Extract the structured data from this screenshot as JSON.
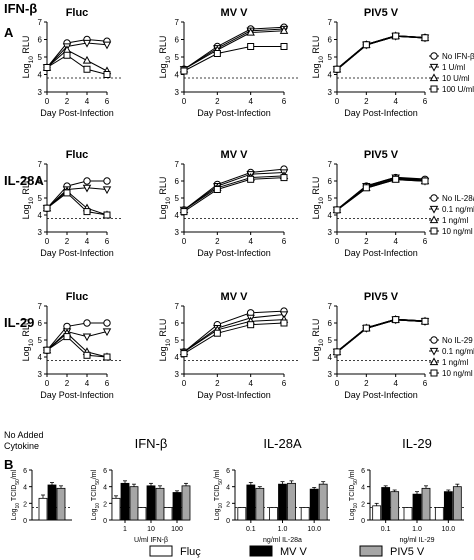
{
  "figure": {
    "panel_labels": [
      "A",
      "B"
    ],
    "row_titles": [
      "IFN-β",
      "IL-28A",
      "IL-29"
    ],
    "panel_titles": [
      "Fluc",
      "MV V",
      "PIV5 V"
    ],
    "line_xlabel": "Day Post-Infection",
    "line_ylabel_main": "Log",
    "line_ylabel_sub": "10",
    "line_ylabel_tail": " RLU",
    "bar_titles": [
      "No Added\nCytokine",
      "IFN-β",
      "IL-28A",
      "IL-29"
    ],
    "bar_ylabel_main": "Log",
    "bar_ylabel_sub1": "10",
    "bar_ylabel_mid": " TCID",
    "bar_ylabel_sub2": "50",
    "bar_ylabel_tail": "/ml",
    "bar_xlabels": [
      "U/ml IFN-β",
      "ng/ml IL-28a",
      "ng/ml IL-29"
    ],
    "bar_legend": [
      "Fluç",
      "MV V",
      "PIV5 V"
    ],
    "colors": {
      "fluc": "#ffffff",
      "mv": "#000000",
      "piv5": "#a6a6a6",
      "axis": "#000000"
    }
  },
  "chart_data": [
    {
      "type": "line",
      "row": 0,
      "title": "Fluc",
      "xlabel": "Day Post-Infection",
      "ylabel": "Log10 RLU",
      "x": [
        0,
        2,
        4,
        6
      ],
      "xlim": [
        0,
        6
      ],
      "ylim": [
        3,
        7
      ],
      "detection_limit": 3.8,
      "series": [
        {
          "name": "No IFN-β",
          "marker": "circle",
          "values": [
            4.4,
            5.8,
            6.0,
            5.9
          ]
        },
        {
          "name": "1 U/ml",
          "marker": "inv-triangle",
          "values": [
            4.4,
            5.6,
            5.8,
            5.7
          ]
        },
        {
          "name": "10 U/ml",
          "marker": "triangle",
          "values": [
            4.4,
            5.4,
            4.8,
            4.2
          ]
        },
        {
          "name": "100 U/ml",
          "marker": "square",
          "values": [
            4.4,
            5.1,
            4.3,
            4.0
          ]
        }
      ]
    },
    {
      "type": "line",
      "row": 0,
      "title": "MV V",
      "xlabel": "Day Post-Infection",
      "ylabel": "Log10 RLU",
      "x": [
        0,
        2,
        4,
        6
      ],
      "xlim": [
        0,
        6
      ],
      "ylim": [
        3,
        7
      ],
      "detection_limit": 3.8,
      "series": [
        {
          "name": "No IFN-β",
          "marker": "circle",
          "values": [
            4.3,
            5.6,
            6.6,
            6.7
          ]
        },
        {
          "name": "1 U/ml",
          "marker": "inv-triangle",
          "values": [
            4.3,
            5.5,
            6.5,
            6.6
          ]
        },
        {
          "name": "10 U/ml",
          "marker": "triangle",
          "values": [
            4.3,
            5.4,
            6.4,
            6.5
          ]
        },
        {
          "name": "100 U/ml",
          "marker": "square",
          "values": [
            4.2,
            5.2,
            5.6,
            5.6
          ]
        }
      ]
    },
    {
      "type": "line",
      "row": 0,
      "title": "PIV5 V",
      "xlabel": "Day Post-Infection",
      "ylabel": "Log10 RLU",
      "x": [
        0,
        2,
        4,
        6
      ],
      "xlim": [
        0,
        6
      ],
      "ylim": [
        3,
        7
      ],
      "detection_limit": 3.8,
      "series": [
        {
          "name": "No IFN-β",
          "marker": "circle",
          "values": [
            4.3,
            5.7,
            6.2,
            6.1
          ]
        },
        {
          "name": "1 U/ml",
          "marker": "inv-triangle",
          "values": [
            4.3,
            5.7,
            6.2,
            6.1
          ]
        },
        {
          "name": "10 U/ml",
          "marker": "triangle",
          "values": [
            4.3,
            5.7,
            6.2,
            6.1
          ]
        },
        {
          "name": "100 U/ml",
          "marker": "square",
          "values": [
            4.3,
            5.7,
            6.2,
            6.1
          ]
        }
      ]
    },
    {
      "type": "line",
      "row": 1,
      "title": "Fluc",
      "xlabel": "Day Post-Infection",
      "ylabel": "Log10 RLU",
      "x": [
        0,
        2,
        4,
        6
      ],
      "xlim": [
        0,
        6
      ],
      "ylim": [
        3,
        7
      ],
      "detection_limit": 3.8,
      "series": [
        {
          "name": "No IL-28a",
          "marker": "circle",
          "values": [
            4.4,
            5.7,
            6.0,
            6.0
          ]
        },
        {
          "name": "0.1 ng/ml",
          "marker": "inv-triangle",
          "values": [
            4.4,
            5.5,
            5.6,
            5.5
          ]
        },
        {
          "name": "1 ng/ml",
          "marker": "triangle",
          "values": [
            4.4,
            5.4,
            4.4,
            4.0
          ]
        },
        {
          "name": "10 ng/ml",
          "marker": "square",
          "values": [
            4.4,
            5.3,
            4.2,
            4.0
          ]
        }
      ]
    },
    {
      "type": "line",
      "row": 1,
      "title": "MV V",
      "xlabel": "Day Post-Infection",
      "ylabel": "Log10 RLU",
      "x": [
        0,
        2,
        4,
        6
      ],
      "xlim": [
        0,
        6
      ],
      "ylim": [
        3,
        7
      ],
      "detection_limit": 3.8,
      "series": [
        {
          "name": "No IL-28a",
          "marker": "circle",
          "values": [
            4.3,
            5.8,
            6.5,
            6.7
          ]
        },
        {
          "name": "0.1 ng/ml",
          "marker": "inv-triangle",
          "values": [
            4.3,
            5.7,
            6.4,
            6.5
          ]
        },
        {
          "name": "1 ng/ml",
          "marker": "triangle",
          "values": [
            4.3,
            5.6,
            6.2,
            6.3
          ]
        },
        {
          "name": "10 ng/ml",
          "marker": "square",
          "values": [
            4.2,
            5.5,
            6.1,
            6.2
          ]
        }
      ]
    },
    {
      "type": "line",
      "row": 1,
      "title": "PIV5 V",
      "xlabel": "Day Post-Infection",
      "ylabel": "Log10 RLU",
      "x": [
        0,
        2,
        4,
        6
      ],
      "xlim": [
        0,
        6
      ],
      "ylim": [
        3,
        7
      ],
      "detection_limit": 3.8,
      "series": [
        {
          "name": "No IL-28a",
          "marker": "circle",
          "values": [
            4.3,
            5.7,
            6.2,
            6.1
          ]
        },
        {
          "name": "0.1 ng/ml",
          "marker": "inv-triangle",
          "values": [
            4.3,
            5.7,
            6.2,
            6.0
          ]
        },
        {
          "name": "1 ng/ml",
          "marker": "triangle",
          "values": [
            4.3,
            5.6,
            6.1,
            6.0
          ]
        },
        {
          "name": "10 ng/ml",
          "marker": "square",
          "values": [
            4.3,
            5.6,
            6.1,
            6.0
          ]
        }
      ]
    },
    {
      "type": "line",
      "row": 2,
      "title": "Fluc",
      "xlabel": "Day Post-Infection",
      "ylabel": "Log10 RLU",
      "x": [
        0,
        2,
        4,
        6
      ],
      "xlim": [
        0,
        6
      ],
      "ylim": [
        3,
        7
      ],
      "detection_limit": 3.8,
      "series": [
        {
          "name": "No IL-29",
          "marker": "circle",
          "values": [
            4.4,
            5.8,
            6.0,
            6.0
          ]
        },
        {
          "name": "0.1 ng/ml",
          "marker": "inv-triangle",
          "values": [
            4.4,
            5.5,
            5.2,
            5.5
          ]
        },
        {
          "name": "1 ng/ml",
          "marker": "triangle",
          "values": [
            4.4,
            5.4,
            4.3,
            4.0
          ]
        },
        {
          "name": "10 ng/ml",
          "marker": "square",
          "values": [
            4.4,
            5.2,
            4.1,
            4.0
          ]
        }
      ]
    },
    {
      "type": "line",
      "row": 2,
      "title": "MV V",
      "xlabel": "Day Post-Infection",
      "ylabel": "Log10 RLU",
      "x": [
        0,
        2,
        4,
        6
      ],
      "xlim": [
        0,
        6
      ],
      "ylim": [
        3,
        7
      ],
      "detection_limit": 3.8,
      "series": [
        {
          "name": "No IL-29",
          "marker": "circle",
          "values": [
            4.3,
            5.9,
            6.6,
            6.7
          ]
        },
        {
          "name": "0.1 ng/ml",
          "marker": "inv-triangle",
          "values": [
            4.3,
            5.7,
            6.3,
            6.5
          ]
        },
        {
          "name": "1 ng/ml",
          "marker": "triangle",
          "values": [
            4.3,
            5.6,
            6.1,
            6.2
          ]
        },
        {
          "name": "10 ng/ml",
          "marker": "square",
          "values": [
            4.2,
            5.4,
            5.9,
            6.0
          ]
        }
      ]
    },
    {
      "type": "line",
      "row": 2,
      "title": "PIV5 V",
      "xlabel": "Day Post-Infection",
      "ylabel": "Log10 RLU",
      "x": [
        0,
        2,
        4,
        6
      ],
      "xlim": [
        0,
        6
      ],
      "ylim": [
        3,
        7
      ],
      "detection_limit": 3.8,
      "series": [
        {
          "name": "No IL-29",
          "marker": "circle",
          "values": [
            4.3,
            5.7,
            6.2,
            6.1
          ]
        },
        {
          "name": "0.1 ng/ml",
          "marker": "inv-triangle",
          "values": [
            4.3,
            5.7,
            6.2,
            6.1
          ]
        },
        {
          "name": "1 ng/ml",
          "marker": "triangle",
          "values": [
            4.3,
            5.7,
            6.2,
            6.1
          ]
        },
        {
          "name": "10 ng/ml",
          "marker": "square",
          "values": [
            4.3,
            5.7,
            6.2,
            6.1
          ]
        }
      ]
    },
    {
      "type": "bar",
      "title": "No Added\nCytokine",
      "ylabel": "Log10 TCID50/ml",
      "ylim": [
        0,
        6
      ],
      "categories": [
        ""
      ],
      "detection_limit": 1.5,
      "xlabel": "",
      "series": [
        {
          "name": "Fluç",
          "values": [
            2.6
          ],
          "errors": [
            0.4
          ]
        },
        {
          "name": "MV V",
          "values": [
            4.2
          ],
          "errors": [
            0.3
          ]
        },
        {
          "name": "PIV5 V",
          "values": [
            3.8
          ],
          "errors": [
            0.3
          ]
        }
      ]
    },
    {
      "type": "bar",
      "title": "IFN-β",
      "ylabel": "Log10 TCID50/ml",
      "ylim": [
        0,
        6
      ],
      "categories": [
        "1",
        "10",
        "100"
      ],
      "detection_limit": 1.5,
      "xlabel": "U/ml IFN-β",
      "series": [
        {
          "name": "Fluç",
          "values": [
            2.6,
            1.5,
            1.5
          ],
          "errors": [
            0.3,
            0,
            0
          ]
        },
        {
          "name": "MV V",
          "values": [
            4.4,
            4.1,
            3.3
          ],
          "errors": [
            0.3,
            0.3,
            0.2
          ]
        },
        {
          "name": "PIV5 V",
          "values": [
            4.0,
            3.8,
            4.1
          ],
          "errors": [
            0.3,
            0.3,
            0.3
          ]
        }
      ]
    },
    {
      "type": "bar",
      "title": "IL-28A",
      "ylabel": "Log10 TCID50/ml",
      "ylim": [
        0,
        6
      ],
      "categories": [
        "0.1",
        "1.0",
        "10.0"
      ],
      "detection_limit": 1.5,
      "xlabel": "ng/ml IL-28a",
      "series": [
        {
          "name": "Fluç",
          "values": [
            1.5,
            1.5,
            1.5
          ],
          "errors": [
            0,
            0,
            0
          ]
        },
        {
          "name": "MV V",
          "values": [
            4.2,
            4.3,
            3.7
          ],
          "errors": [
            0.3,
            0.3,
            0.2
          ]
        },
        {
          "name": "PIV5 V",
          "values": [
            3.8,
            4.4,
            4.3
          ],
          "errors": [
            0.2,
            0.3,
            0.3
          ]
        }
      ]
    },
    {
      "type": "bar",
      "title": "IL-29",
      "ylabel": "Log10 TCID50/ml",
      "ylim": [
        0,
        6
      ],
      "categories": [
        "0.1",
        "1.0",
        "10.0"
      ],
      "detection_limit": 1.5,
      "xlabel": "ng/ml IL-29",
      "series": [
        {
          "name": "Fluç",
          "values": [
            1.7,
            1.5,
            1.5
          ],
          "errors": [
            0.3,
            0,
            0
          ]
        },
        {
          "name": "MV V",
          "values": [
            3.9,
            3.1,
            3.4
          ],
          "errors": [
            0.2,
            0.3,
            0.2
          ]
        },
        {
          "name": "PIV5 V",
          "values": [
            3.4,
            3.8,
            4.0
          ],
          "errors": [
            0.2,
            0.3,
            0.3
          ]
        }
      ]
    }
  ]
}
